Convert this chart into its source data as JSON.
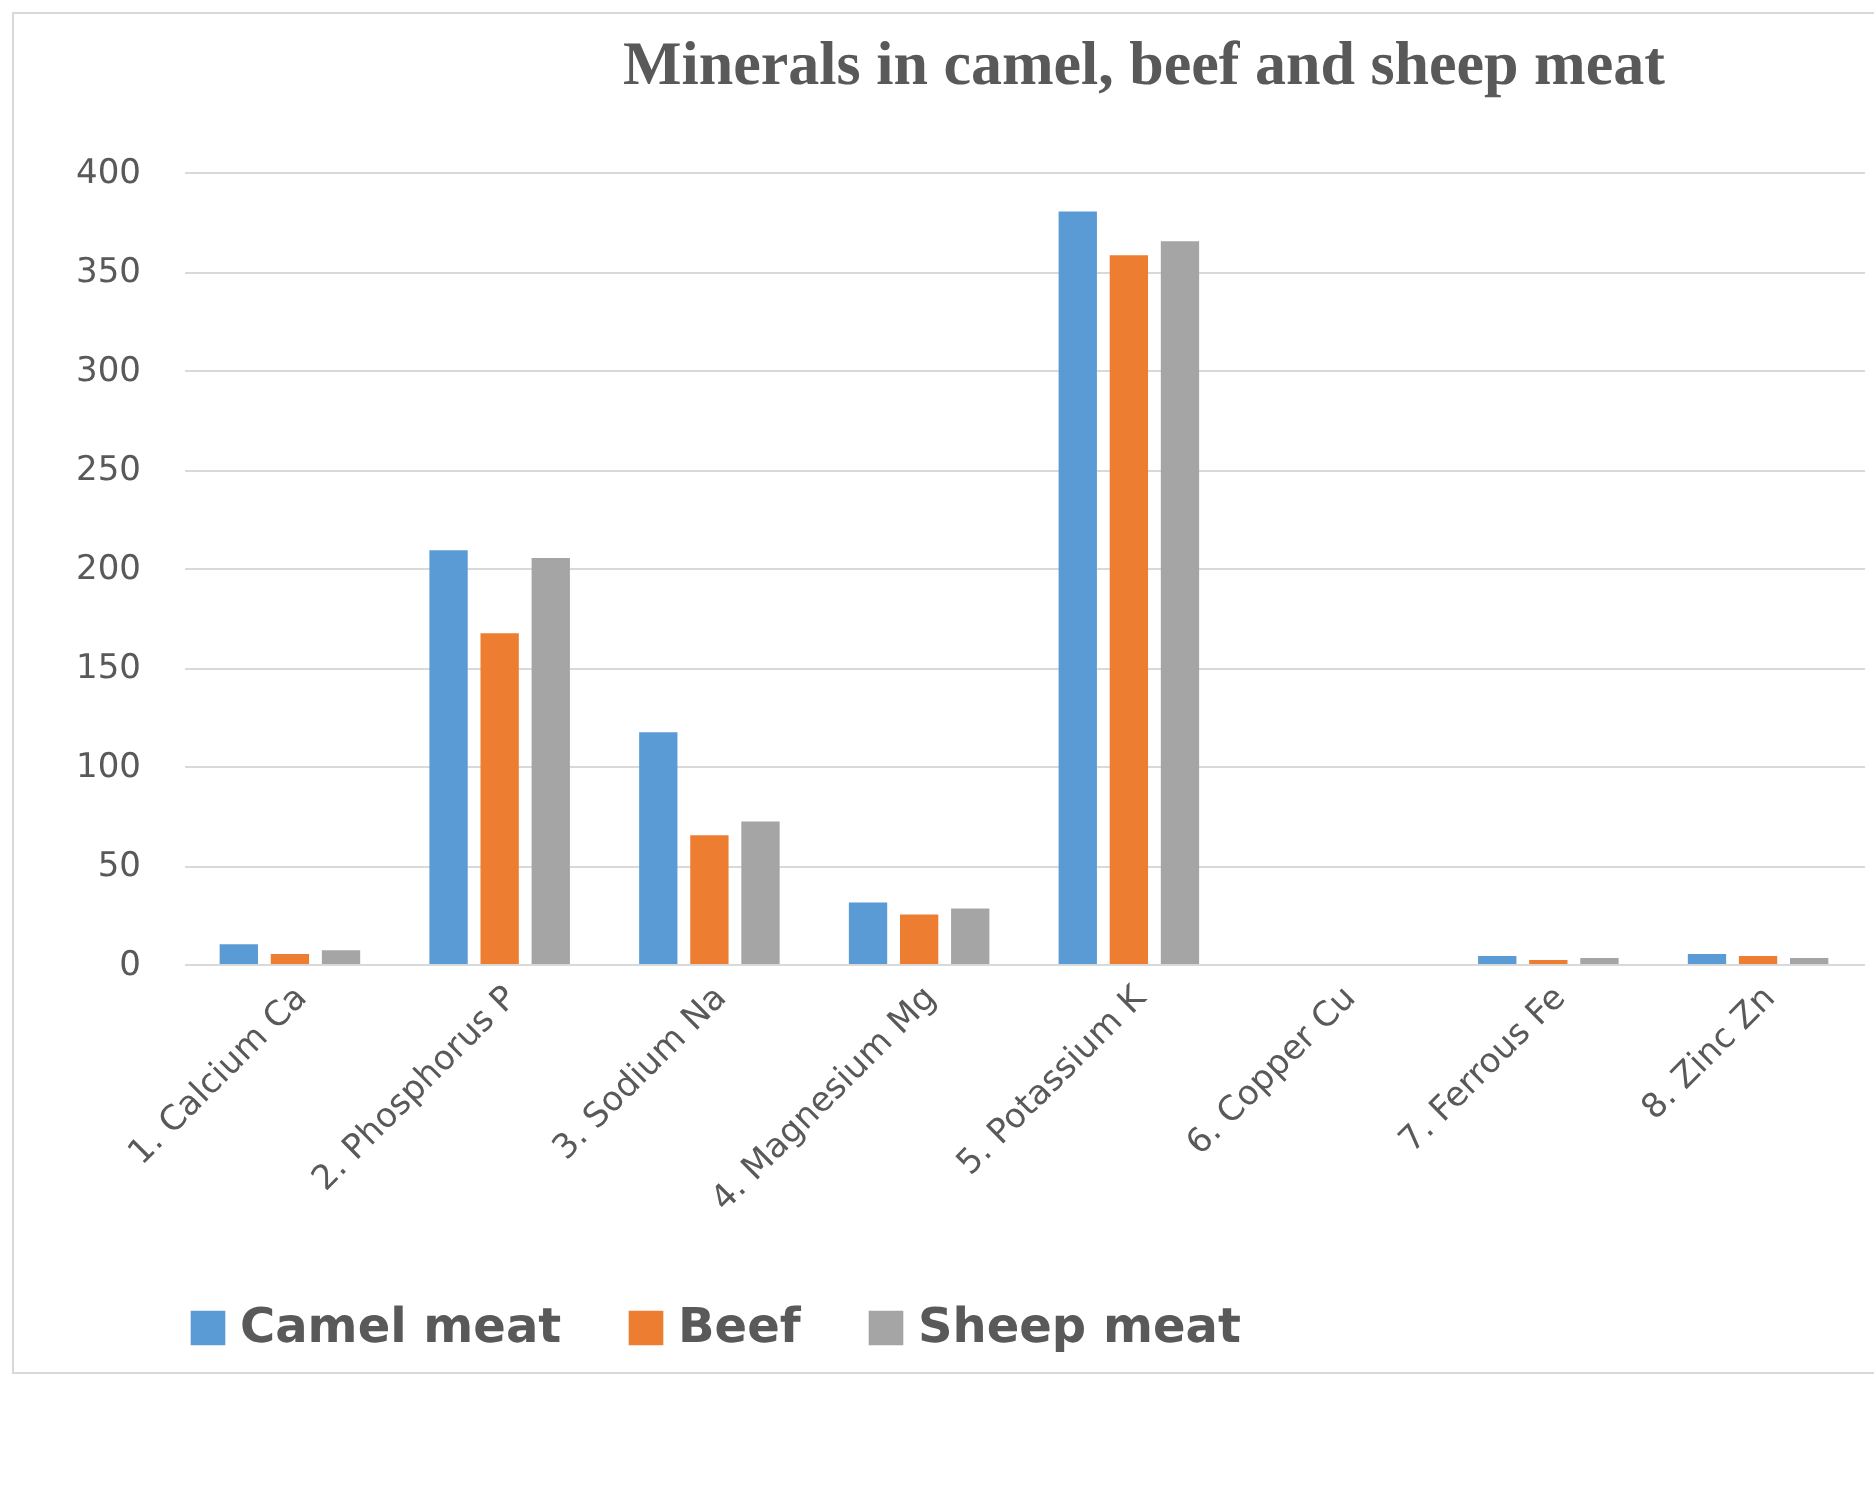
{
  "chart_data": {
    "type": "bar",
    "title": "Minerals in camel, beef and sheep meat",
    "categories": [
      "1. Calcium       Ca",
      "2. Phosphorus    P",
      "3. Sodium       Na",
      "4. Magnesium  Mg",
      "5. Potassium    K",
      "6. Copper       Cu",
      "7. Ferrous       Fe",
      "8. Zinc         Zn"
    ],
    "series": [
      {
        "name": "Camel meat",
        "color": "#5b9bd5",
        "values": [
          10,
          209,
          117,
          31,
          380,
          0,
          4,
          5
        ]
      },
      {
        "name": "Beef",
        "color": "#ed7d31",
        "values": [
          5,
          167,
          65,
          25,
          358,
          0,
          2,
          4
        ]
      },
      {
        "name": "Sheep meat",
        "color": "#a5a5a5",
        "values": [
          7,
          205,
          72,
          28,
          365,
          0,
          3,
          3
        ]
      }
    ],
    "ylim": [
      0,
      400
    ],
    "yticks": [
      0,
      50,
      100,
      150,
      200,
      250,
      300,
      350,
      400
    ],
    "grid": "y",
    "legend": "bottom"
  }
}
